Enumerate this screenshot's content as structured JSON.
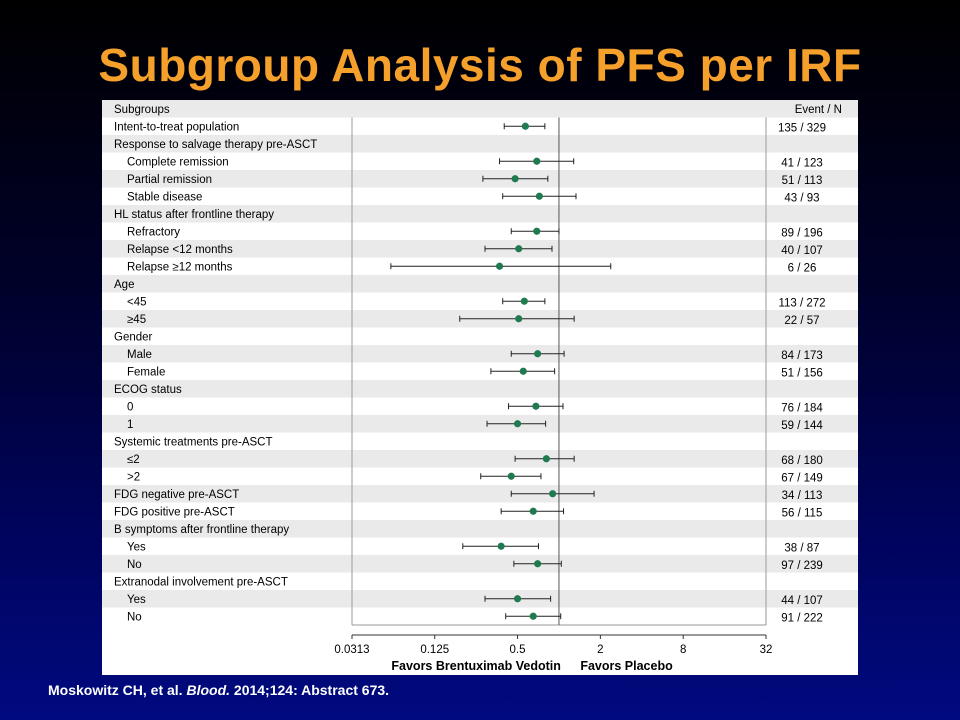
{
  "title": "Subgroup Analysis of PFS per IRF",
  "citation": {
    "authors": "Moskowitz CH, et al.",
    "journal": "Blood.",
    "rest": " 2014;124: Abstract 673."
  },
  "colors": {
    "title": "#f6a02c",
    "point": "#1f7a50",
    "band": "#eaeaea"
  },
  "chart_data": {
    "type": "forest",
    "header_left": "Subgroups",
    "header_right": "Event / N",
    "x_scale": "log2",
    "xlim": [
      0.0313,
      32
    ],
    "x_ticks": [
      0.0313,
      0.125,
      0.5,
      2,
      8,
      32
    ],
    "x_tick_labels": [
      "0.0313",
      "0.125",
      "0.5",
      "2",
      "8",
      "32"
    ],
    "reference_line": 1,
    "favors_left": "Favors Brentuximab Vedotin",
    "favors_right": "Favors Placebo",
    "rows": [
      {
        "label": "Intent-to-treat population",
        "indent": false,
        "hr": 0.57,
        "lo": 0.4,
        "hi": 0.79,
        "events": "135 / 329"
      },
      {
        "label": "Response to salvage therapy pre-ASCT",
        "indent": false,
        "header": true
      },
      {
        "label": "Complete remission",
        "indent": true,
        "hr": 0.69,
        "lo": 0.37,
        "hi": 1.28,
        "events": "41 / 123"
      },
      {
        "label": "Partial remission",
        "indent": true,
        "hr": 0.48,
        "lo": 0.28,
        "hi": 0.83,
        "events": "51 / 113"
      },
      {
        "label": "Stable disease",
        "indent": true,
        "hr": 0.72,
        "lo": 0.39,
        "hi": 1.33,
        "events": "43 / 93"
      },
      {
        "label": "HL status after frontline therapy",
        "indent": false,
        "header": true
      },
      {
        "label": "Refractory",
        "indent": true,
        "hr": 0.69,
        "lo": 0.45,
        "hi": 1.0,
        "events": "89 / 196"
      },
      {
        "label": "Relapse <12 months",
        "indent": true,
        "hr": 0.51,
        "lo": 0.29,
        "hi": 0.89,
        "events": "40 / 107"
      },
      {
        "label": "Relapse ≥12 months",
        "indent": true,
        "hr": 0.37,
        "lo": 0.06,
        "hi": 2.38,
        "events": "6 / 26"
      },
      {
        "label": "Age",
        "indent": false,
        "header": true
      },
      {
        "label": "<45",
        "indent": true,
        "hr": 0.56,
        "lo": 0.39,
        "hi": 0.79,
        "events": "113 / 272"
      },
      {
        "label": "≥45",
        "indent": true,
        "hr": 0.51,
        "lo": 0.19,
        "hi": 1.29,
        "events": "22 / 57"
      },
      {
        "label": "Gender",
        "indent": false,
        "header": true
      },
      {
        "label": "Male",
        "indent": true,
        "hr": 0.7,
        "lo": 0.45,
        "hi": 1.09,
        "events": "84 / 173"
      },
      {
        "label": "Female",
        "indent": true,
        "hr": 0.55,
        "lo": 0.32,
        "hi": 0.93,
        "events": "51 / 156"
      },
      {
        "label": "ECOG status",
        "indent": false,
        "header": true
      },
      {
        "label": "0",
        "indent": true,
        "hr": 0.68,
        "lo": 0.43,
        "hi": 1.07,
        "events": "76 / 184"
      },
      {
        "label": "1",
        "indent": true,
        "hr": 0.5,
        "lo": 0.3,
        "hi": 0.8,
        "events": "59 / 144"
      },
      {
        "label": "Systemic treatments pre-ASCT",
        "indent": false,
        "header": true
      },
      {
        "label": "≤2",
        "indent": true,
        "hr": 0.81,
        "lo": 0.48,
        "hi": 1.29,
        "events": "68 / 180"
      },
      {
        "label": ">2",
        "indent": true,
        "hr": 0.45,
        "lo": 0.27,
        "hi": 0.74,
        "events": "67 / 149"
      },
      {
        "label": "FDG negative pre-ASCT",
        "indent": false,
        "hr": 0.9,
        "lo": 0.45,
        "hi": 1.8,
        "events": "34 / 113"
      },
      {
        "label": "FDG positive pre-ASCT",
        "indent": false,
        "hr": 0.65,
        "lo": 0.38,
        "hi": 1.08,
        "events": "56 / 115"
      },
      {
        "label": "B symptoms after frontline therapy",
        "indent": false,
        "header": true
      },
      {
        "label": "Yes",
        "indent": true,
        "hr": 0.38,
        "lo": 0.2,
        "hi": 0.71,
        "events": "38 / 87"
      },
      {
        "label": "No",
        "indent": true,
        "hr": 0.7,
        "lo": 0.47,
        "hi": 1.04,
        "events": "97 / 239"
      },
      {
        "label": "Extranodal involvement pre-ASCT",
        "indent": false,
        "header": true
      },
      {
        "label": "Yes",
        "indent": true,
        "hr": 0.5,
        "lo": 0.29,
        "hi": 0.87,
        "events": "44 / 107"
      },
      {
        "label": "No",
        "indent": true,
        "hr": 0.65,
        "lo": 0.41,
        "hi": 1.03,
        "events": "91 / 222"
      }
    ]
  }
}
